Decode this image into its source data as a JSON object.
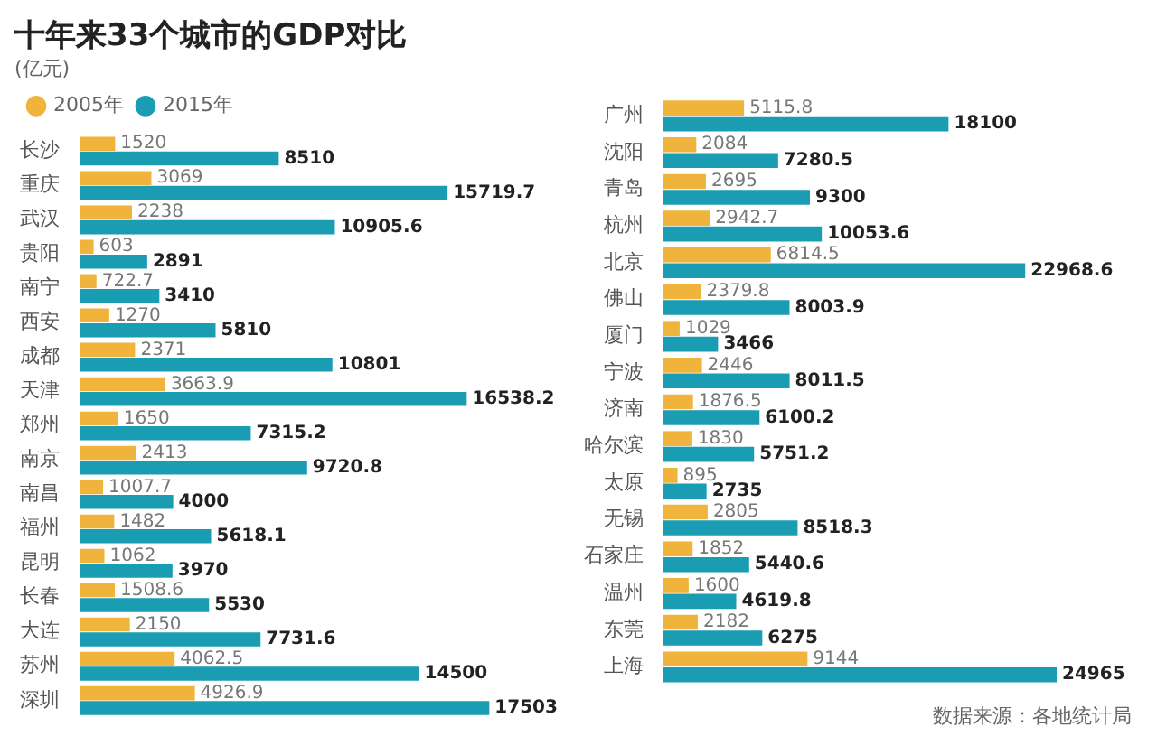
{
  "chart_data": [
    {
      "type": "bar",
      "orientation": "horizontal",
      "title": "十年来33个城市的GDP对比",
      "subtitle": "(亿元)",
      "legend": "top left",
      "data_labels": true,
      "categories": [
        "长沙",
        "重庆",
        "武汉",
        "贵阳",
        "南宁",
        "西安",
        "成都",
        "天津",
        "郑州",
        "南京",
        "南昌",
        "福州",
        "昆明",
        "长春",
        "大连",
        "苏州",
        "深圳"
      ],
      "series": [
        {
          "name": "2005年",
          "color": "#f0b43c",
          "values": [
            1520,
            3069,
            2238,
            603,
            722.7,
            1270,
            2371,
            3663.9,
            1650,
            2413,
            1007.7,
            1482,
            1062,
            1508.6,
            2150,
            4062.5,
            4926.9
          ]
        },
        {
          "name": "2015年",
          "color": "#1a9db3",
          "values": [
            8510,
            15719.7,
            10905.6,
            2891,
            3410,
            5810,
            10801,
            16538.2,
            7315.2,
            9720.8,
            4000,
            5618.1,
            3970,
            5530,
            7731.6,
            14500,
            17503
          ]
        }
      ]
    },
    {
      "type": "bar",
      "orientation": "horizontal",
      "data_labels": true,
      "annotations": [
        "数据来源：各地统计局"
      ],
      "categories": [
        "广州",
        "沈阳",
        "青岛",
        "杭州",
        "北京",
        "佛山",
        "厦门",
        "宁波",
        "济南",
        "哈尔滨",
        "太原",
        "无锡",
        "石家庄",
        "温州",
        "东莞",
        "上海"
      ],
      "series": [
        {
          "color": "#f0b43c",
          "values": [
            5115.8,
            2084,
            2695,
            2942.7,
            6814.5,
            2379.8,
            1029,
            2446,
            1876.5,
            1830,
            895,
            2805,
            1852,
            1600,
            2182,
            9144
          ]
        },
        {
          "color": "#1a9db3",
          "values": [
            18100,
            7280.5,
            9300,
            10053.6,
            22968.6,
            8003.9,
            3466,
            8011.5,
            6100.2,
            5751.2,
            2735,
            8518.3,
            5440.6,
            4619.8,
            6275,
            24965
          ]
        }
      ]
    }
  ]
}
